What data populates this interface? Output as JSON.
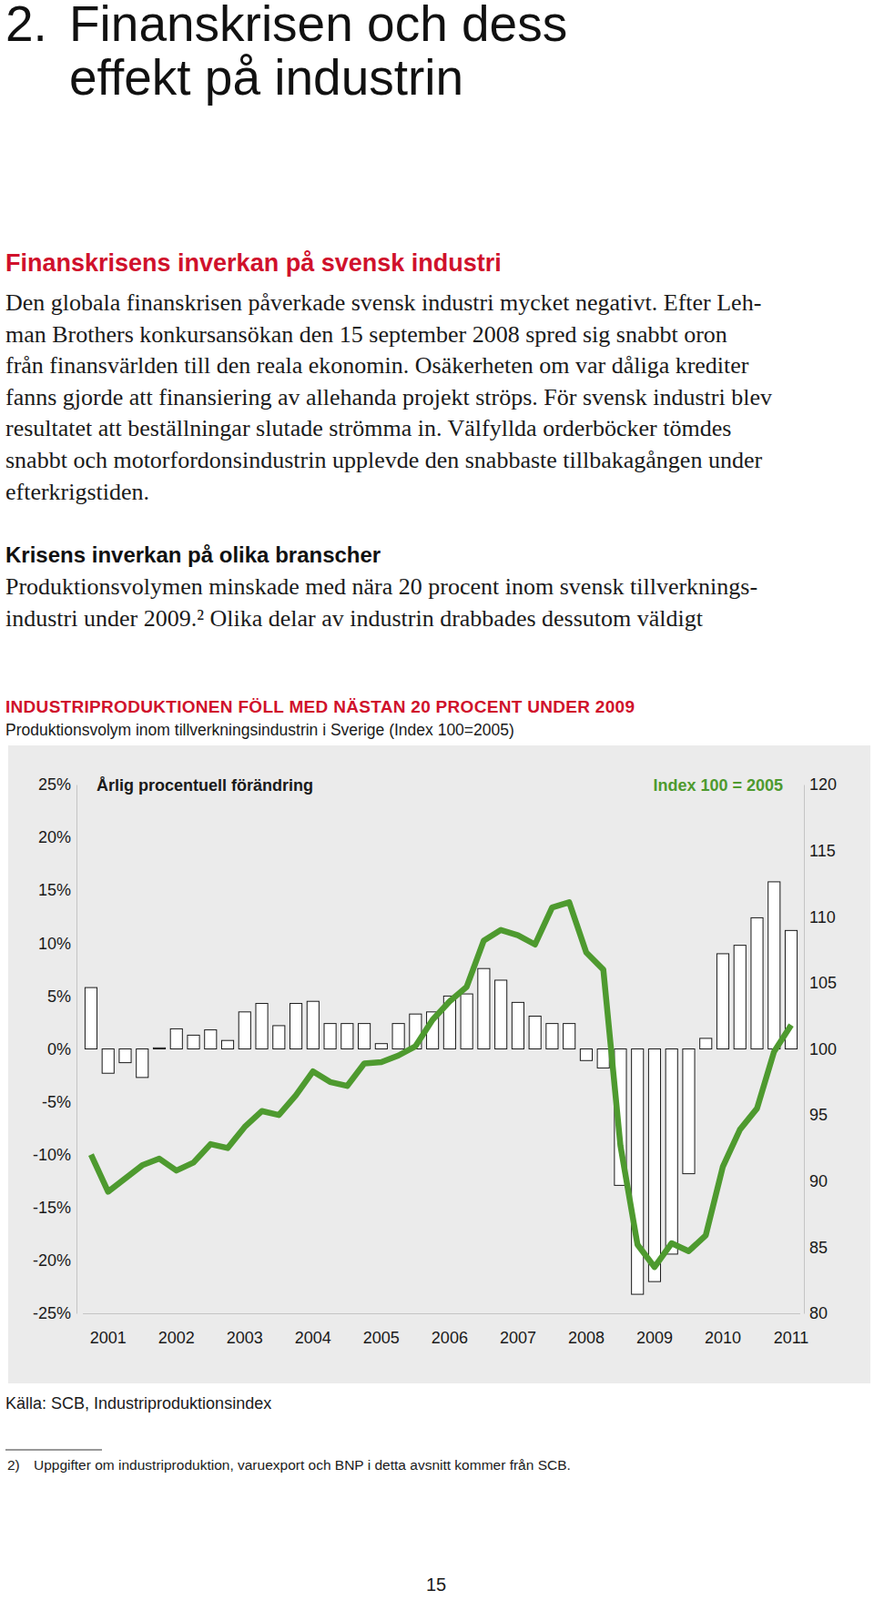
{
  "document": {
    "title_number": "2.",
    "title_lines": [
      "Finanskrisen och dess",
      "effekt på industrin"
    ],
    "heading": "Finanskrisens inverkan på svensk industri",
    "paragraph_1": [
      "Den globala finanskrisen påverkade svensk industri mycket negativt. Efter Leh-",
      "man Brothers konkursansökan den 15 september 2008 spred sig snabbt oron",
      "från finansvärlden till den reala ekonomin. Osäkerheten om var dåliga krediter",
      "fanns gjorde att finansiering av allehanda projekt ströps. För svensk industri blev",
      "resultatet att beställningar slutade strömma in. Välfyllda orderböcker tömdes",
      "snabbt och motorfordonsindustrin upplevde den snabbaste tillbakagången under",
      "efterkrigstiden."
    ],
    "subheading": "Krisens inverkan på olika branscher",
    "paragraph_2": [
      "Produktionsvolymen minskade med nära 20 procent inom svensk tillverknings-",
      "industri under 2009.² Olika delar av industrin drabbades dessutom väldigt"
    ],
    "source": "Källa: SCB, Industriproduktionsindex",
    "footnote": {
      "number": "2)",
      "text": "Uppgifter om industriproduktion, varuexport och BNP i detta avsnitt kommer från SCB."
    },
    "page_number": "15"
  },
  "chart_data": {
    "type": "bar",
    "title": "INDUSTRIPRODUKTIONEN FÖLL MED NÄSTAN 20 PROCENT UNDER 2009",
    "subtitle": "Produktionsvolym inom tillverkningsindustrin i Sverige (Index 100=2005)",
    "categories": [
      null,
      "2001",
      null,
      null,
      null,
      "2002",
      null,
      null,
      null,
      "2003",
      null,
      null,
      null,
      "2004",
      null,
      null,
      null,
      "2005",
      null,
      null,
      null,
      "2006",
      null,
      null,
      null,
      "2007",
      null,
      null,
      null,
      "2008",
      null,
      null,
      null,
      "2009",
      null,
      null,
      null,
      "2010",
      null,
      null,
      null,
      "2011"
    ],
    "series": [
      {
        "name": "Årlig procentuell förändring",
        "type": "bar",
        "color": "#ffffff",
        "values": [
          5.8,
          -2.3,
          -1.3,
          -2.7,
          0.1,
          1.9,
          1.3,
          1.8,
          0.8,
          3.5,
          4.3,
          2.2,
          4.3,
          4.5,
          2.4,
          2.4,
          2.4,
          0.5,
          2.4,
          3.3,
          3.5,
          5.0,
          5.2,
          7.6,
          6.5,
          4.4,
          3.1,
          2.4,
          2.4,
          -1.1,
          -1.8,
          -12.9,
          -23.2,
          -22.0,
          -19.4,
          -11.8,
          1.0,
          9.0,
          9.8,
          12.4,
          15.8,
          11.2
        ]
      },
      {
        "name": "Index 100 = 2005",
        "type": "line",
        "color": "#4e9a2f",
        "axis": "y2",
        "values": [
          92.0,
          89.2,
          90.2,
          91.2,
          91.7,
          90.8,
          91.4,
          92.8,
          92.5,
          94.1,
          95.3,
          95.0,
          96.5,
          98.3,
          97.5,
          97.2,
          98.9,
          99.0,
          99.5,
          100.2,
          102.2,
          103.6,
          104.7,
          108.2,
          109.0,
          108.6,
          107.9,
          110.7,
          111.1,
          107.3,
          106.0,
          92.7,
          85.2,
          83.5,
          85.3,
          84.7,
          85.9,
          91.1,
          93.9,
          95.5,
          99.8,
          101.8
        ]
      }
    ],
    "ylim": [
      -25,
      25
    ],
    "yticks": [
      {
        "value": 25,
        "label": "25%"
      },
      {
        "value": 20,
        "label": "20%"
      },
      {
        "value": 15,
        "label": "15%"
      },
      {
        "value": 10,
        "label": "10%"
      },
      {
        "value": 5,
        "label": "5%"
      },
      {
        "value": 0,
        "label": "0%"
      },
      {
        "value": -5,
        "label": "-5%"
      },
      {
        "value": -10,
        "label": "-10%"
      },
      {
        "value": -15,
        "label": "-15%"
      },
      {
        "value": -20,
        "label": "-20%"
      },
      {
        "value": -25,
        "label": "-25%"
      }
    ],
    "y2lim": [
      80,
      120
    ],
    "y2ticks": [
      120,
      115,
      110,
      105,
      100,
      95,
      90,
      85,
      80
    ],
    "grid": false
  }
}
